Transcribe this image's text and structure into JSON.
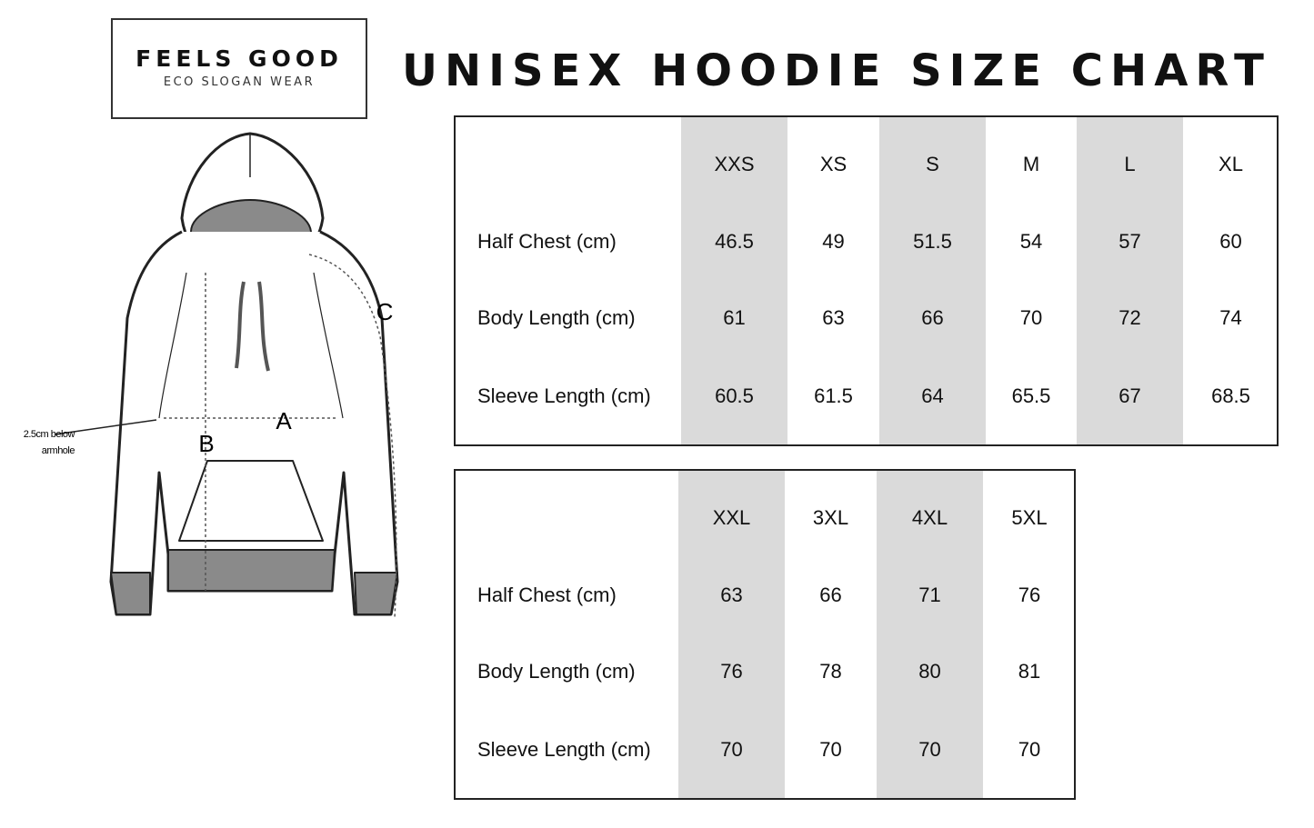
{
  "logo": {
    "brand": "FEELS GOOD",
    "tagline": "ECO SLOGAN WEAR"
  },
  "title": "UNISEX HOODIE SIZE CHART",
  "diagram": {
    "labels": {
      "a": "A",
      "b": "B",
      "c": "C"
    },
    "note_line1": "2.5cm below",
    "note_line2": "armhole"
  },
  "tables": [
    {
      "sizes": [
        "XXS",
        "XS",
        "S",
        "M",
        "L",
        "XL"
      ],
      "rows": [
        {
          "label": "Half Chest (cm)",
          "values": [
            "46.5",
            "49",
            "51.5",
            "54",
            "57",
            "60"
          ]
        },
        {
          "label": "Body Length (cm)",
          "values": [
            "61",
            "63",
            "66",
            "70",
            "72",
            "74"
          ]
        },
        {
          "label": "Sleeve Length (cm)",
          "values": [
            "60.5",
            "61.5",
            "64",
            "65.5",
            "67",
            "68.5"
          ]
        }
      ]
    },
    {
      "sizes": [
        "XXL",
        "3XL",
        "4XL",
        "5XL"
      ],
      "rows": [
        {
          "label": "Half Chest (cm)",
          "values": [
            "63",
            "66",
            "71",
            "76"
          ]
        },
        {
          "label": "Body Length (cm)",
          "values": [
            "76",
            "78",
            "80",
            "81"
          ]
        },
        {
          "label": "Sleeve Length (cm)",
          "values": [
            "70",
            "70",
            "70",
            "70"
          ]
        }
      ]
    }
  ],
  "colors": {
    "shade": "#dadada",
    "border": "#222222",
    "drawing_gray": "#8a8a8a"
  }
}
